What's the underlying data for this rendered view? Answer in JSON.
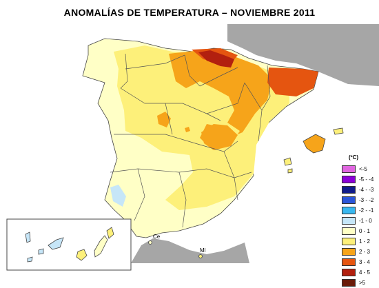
{
  "title": "ANOMALÍAS DE TEMPERATURA – NOVIEMBRE 2011",
  "colors": {
    "sea": "#ffffff",
    "neighbour_land": "#a6a6a6",
    "region_border": "#555555",
    "range_-1_0": "#c6e6f8",
    "range_0_1": "#ffffc6",
    "range_1_2": "#fdf07a",
    "range_2_3": "#f6a41a",
    "range_3_4": "#e55510",
    "range_4_5": "#b2200f"
  },
  "legend": {
    "unit": "(ºC)",
    "items": [
      {
        "label": "<-5",
        "color": "#e066e0"
      },
      {
        "label": "-5 - -4",
        "color": "#8b00d8"
      },
      {
        "label": "-4 - -3",
        "color": "#101c8a"
      },
      {
        "label": "-3 - -2",
        "color": "#2b56d8"
      },
      {
        "label": "-2 - -1",
        "color": "#38b8f0"
      },
      {
        "label": "-1 - 0",
        "color": "#c6e6f8"
      },
      {
        "label": "0 - 1",
        "color": "#ffffc6"
      },
      {
        "label": "1 - 2",
        "color": "#fdf07a"
      },
      {
        "label": "2 - 3",
        "color": "#f6a41a"
      },
      {
        "label": "3 - 4",
        "color": "#e55510"
      },
      {
        "label": "4 - 5",
        "color": "#b2200f"
      },
      {
        "label": ">5",
        "color": "#6a1a08"
      }
    ]
  },
  "places": {
    "ceuta": "Ce",
    "melilla": "Ml"
  }
}
